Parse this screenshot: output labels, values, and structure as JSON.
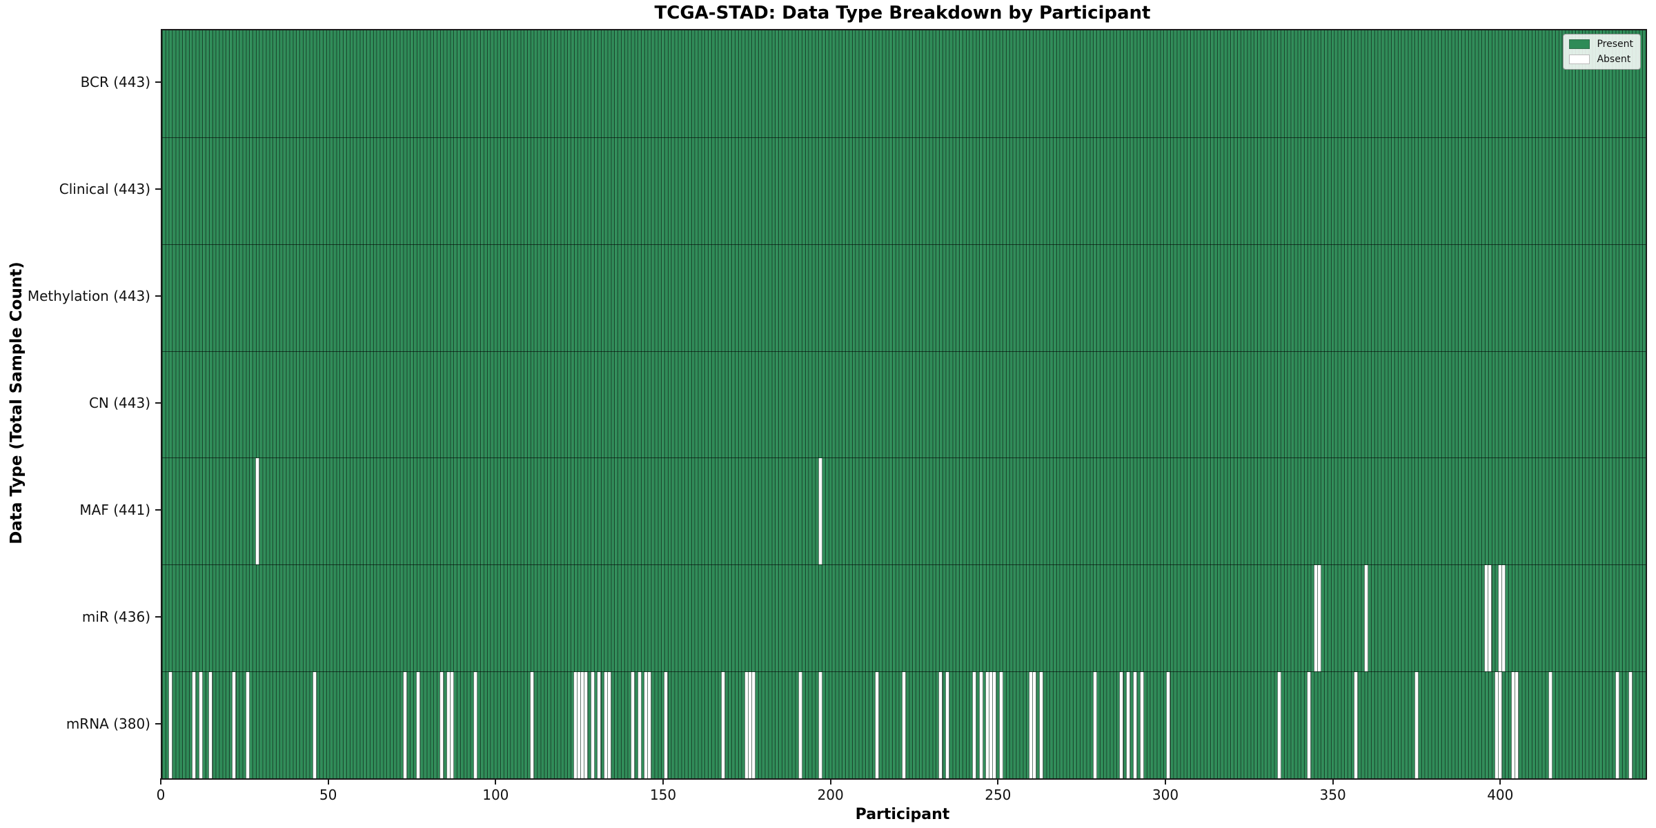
{
  "chart_data": {
    "type": "heatmap",
    "title": "TCGA-STAD: Data Type Breakdown by Participant",
    "xlabel": "Participant",
    "ylabel": "Data Type (Total Sample Count)",
    "n_participants": 443,
    "x_ticks": [
      0,
      50,
      100,
      150,
      200,
      250,
      300,
      350,
      400
    ],
    "grid": false,
    "legend_position": "upper right",
    "colors": {
      "present": "#2e8b57",
      "absent": "#ffffff",
      "bar_edge": "#143223",
      "axes_border": "#1a1a1a"
    },
    "legend": [
      {
        "label": "Present",
        "color": "#2e8b57"
      },
      {
        "label": "Absent",
        "color": "#ffffff"
      }
    ],
    "rows": [
      {
        "name": "BCR",
        "label": "BCR (443)",
        "total": 443,
        "absent": []
      },
      {
        "name": "Clinical",
        "label": "Clinical (443)",
        "total": 443,
        "absent": []
      },
      {
        "name": "Methylation",
        "label": "Methylation (443)",
        "total": 443,
        "absent": []
      },
      {
        "name": "CN",
        "label": "CN (443)",
        "total": 443,
        "absent": []
      },
      {
        "name": "MAF",
        "label": "MAF (441)",
        "total": 441,
        "absent": [
          28,
          196
        ]
      },
      {
        "name": "miR",
        "label": "miR (436)",
        "total": 436,
        "absent": [
          344,
          345,
          359,
          395,
          396,
          399,
          400
        ]
      },
      {
        "name": "mRNA",
        "label": "mRNA (380)",
        "total": 380,
        "absent": [
          2,
          9,
          11,
          14,
          21,
          25,
          45,
          72,
          76,
          83,
          85,
          86,
          93,
          110,
          123,
          124,
          125,
          126,
          128,
          130,
          132,
          133,
          140,
          142,
          144,
          145,
          150,
          167,
          174,
          175,
          176,
          190,
          196,
          213,
          221,
          232,
          234,
          242,
          244,
          246,
          247,
          248,
          250,
          259,
          260,
          262,
          278,
          286,
          288,
          290,
          292,
          300,
          333,
          342,
          356,
          374,
          398,
          399,
          403,
          404,
          414,
          434,
          438
        ]
      }
    ]
  }
}
